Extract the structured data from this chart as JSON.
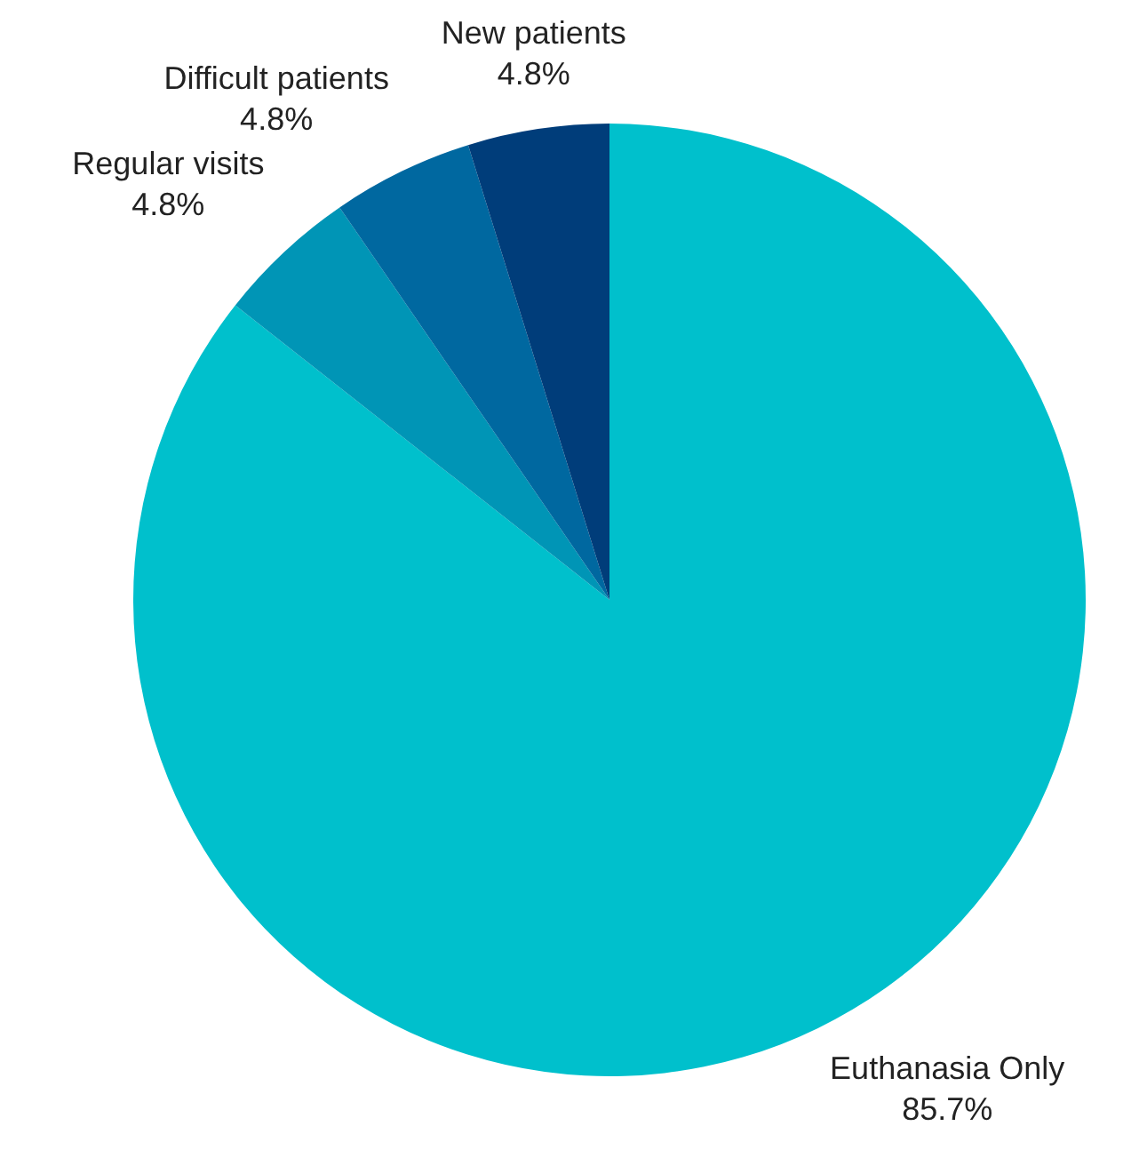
{
  "chart_data": {
    "type": "pie",
    "categories": [
      "Euthanasia Only",
      "Regular visits",
      "Difficult patients",
      "New patients"
    ],
    "values": [
      85.7,
      4.8,
      4.8,
      4.8
    ],
    "value_labels": [
      "85.7%",
      "4.8%",
      "4.8%",
      "4.8%"
    ],
    "colors": [
      "#00c0cc",
      "#0095b6",
      "#0068a0",
      "#003d7a"
    ],
    "legend": false
  }
}
